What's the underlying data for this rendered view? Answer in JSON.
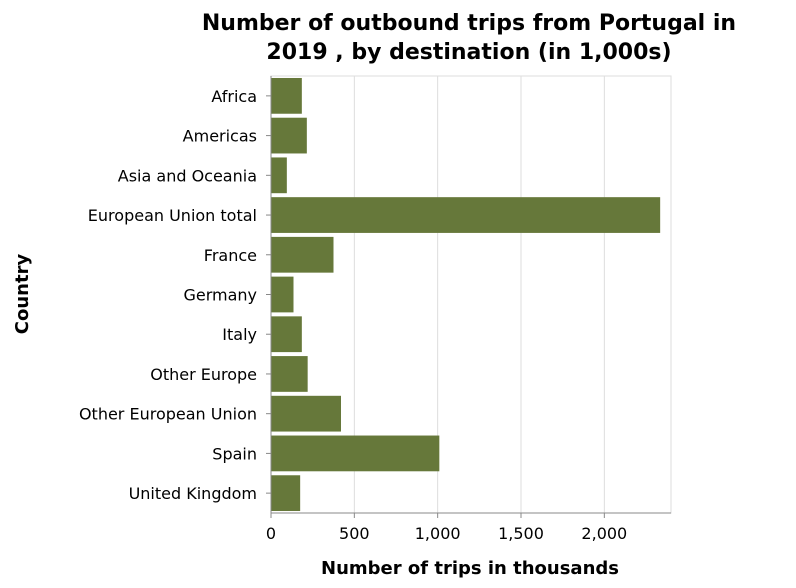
{
  "chart_data": {
    "type": "bar",
    "orientation": "horizontal",
    "title": "Number of outbound trips from Portugal in 2019 , by destination (in 1,000s)",
    "title_lines": [
      "Number of outbound trips from Portugal in",
      "2019 , by destination (in 1,000s)"
    ],
    "xlabel": "Number of trips in thousands",
    "ylabel": "Country",
    "categories": [
      "Africa",
      "Americas",
      "Asia and Oceania",
      "European Union total",
      "France",
      "Germany",
      "Italy",
      "Other Europe",
      "Other European Union",
      "Spain",
      "United Kingdom"
    ],
    "values": [
      185,
      215,
      95,
      2335,
      375,
      135,
      185,
      220,
      420,
      1010,
      175
    ],
    "xlim": [
      0,
      2400
    ],
    "xticks": [
      0,
      500,
      1000,
      1500,
      2000
    ],
    "xtick_labels": [
      "0",
      "500",
      "1,000",
      "1,500",
      "2,000"
    ],
    "grid": "vertical",
    "bar_color": "#66783a"
  }
}
